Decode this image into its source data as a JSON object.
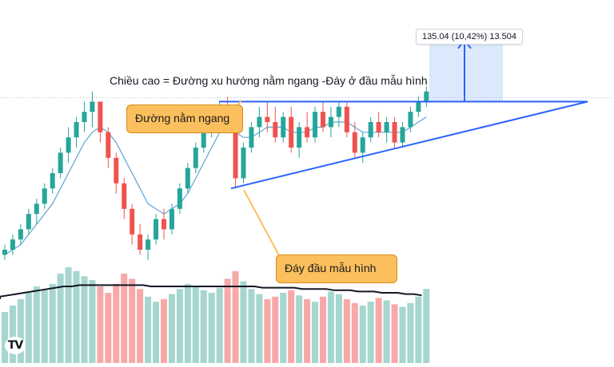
{
  "tooltip": {
    "text": "135.04 (10,42%) 13.504"
  },
  "annotation": {
    "text": "Chiều cao = Đường xu hướng nằm ngang -Đáy ở đầu mẫu hình"
  },
  "callouts": {
    "horizontal_line": "Đường nằm ngang",
    "pattern_bottom": "Đáy đầu mẫu hình"
  },
  "logo": {
    "text": "TV"
  },
  "colors": {
    "up": "#26a69a",
    "down": "#ef5350",
    "volume_up": "#a5d6cf",
    "volume_down": "#f7a9a9",
    "ma_fast": "#5ba5d6",
    "ma_volume": "#131722",
    "trendline": "#2962ff",
    "projection_fill": "#d6e4fa",
    "callout_fill": "#fbbf5d"
  },
  "chart_data": {
    "type": "candlestick",
    "title": "",
    "xlabel": "",
    "ylabel": "",
    "series": [
      {
        "name": "",
        "kind": "ohlc",
        "values": [
          [
            104,
            106,
            103,
            105
          ],
          [
            105,
            108,
            104,
            107
          ],
          [
            107,
            110,
            106,
            109
          ],
          [
            109,
            113,
            108,
            112
          ],
          [
            112,
            115,
            110,
            114
          ],
          [
            114,
            118,
            113,
            117
          ],
          [
            117,
            121,
            116,
            120
          ],
          [
            120,
            125,
            119,
            124
          ],
          [
            124,
            129,
            122,
            127
          ],
          [
            127,
            131,
            125,
            130
          ],
          [
            130,
            134,
            128,
            132
          ],
          [
            132,
            136,
            129,
            134
          ],
          [
            134,
            133,
            126,
            128
          ],
          [
            128,
            129,
            121,
            123
          ],
          [
            123,
            124,
            116,
            118
          ],
          [
            118,
            119,
            111,
            113
          ],
          [
            113,
            114,
            106,
            108
          ],
          [
            108,
            110,
            104,
            105
          ],
          [
            105,
            108,
            103,
            107
          ],
          [
            107,
            112,
            106,
            111
          ],
          [
            111,
            113,
            107,
            109
          ],
          [
            109,
            114,
            108,
            113
          ],
          [
            113,
            118,
            112,
            117
          ],
          [
            117,
            122,
            116,
            121
          ],
          [
            121,
            126,
            120,
            125
          ],
          [
            125,
            130,
            124,
            129
          ],
          [
            129,
            133,
            127,
            131
          ],
          [
            131,
            134,
            129,
            133
          ],
          [
            133,
            135,
            130,
            132
          ],
          [
            132,
            133,
            117,
            119
          ],
          [
            119,
            126,
            118,
            125
          ],
          [
            125,
            130,
            124,
            129
          ],
          [
            129,
            133,
            127,
            131
          ],
          [
            131,
            134,
            128,
            130
          ],
          [
            130,
            133,
            126,
            127
          ],
          [
            127,
            132,
            126,
            131
          ],
          [
            131,
            133,
            124,
            125
          ],
          [
            125,
            130,
            123,
            129
          ],
          [
            129,
            132,
            126,
            127
          ],
          [
            127,
            133,
            126,
            132
          ],
          [
            132,
            134,
            128,
            129
          ],
          [
            129,
            133,
            127,
            131
          ],
          [
            131,
            134,
            129,
            133
          ],
          [
            133,
            134,
            127,
            128
          ],
          [
            128,
            130,
            123,
            124
          ],
          [
            124,
            128,
            122,
            127
          ],
          [
            127,
            131,
            126,
            130
          ],
          [
            130,
            132,
            127,
            128
          ],
          [
            128,
            131,
            126,
            130
          ],
          [
            130,
            131,
            125,
            126
          ],
          [
            126,
            130,
            125,
            129
          ],
          [
            129,
            133,
            128,
            132
          ],
          [
            132,
            135,
            131,
            134
          ],
          [
            134,
            137,
            133,
            136
          ]
        ]
      },
      {
        "name": "",
        "kind": "ma",
        "values": [
          104,
          105,
          106,
          108,
          110,
          112,
          114,
          117,
          120,
          123,
          126,
          128,
          129,
          128,
          126,
          123,
          120,
          117,
          114,
          113,
          112,
          113,
          114,
          116,
          119,
          122,
          125,
          128,
          130,
          128,
          127,
          127,
          128,
          129,
          129,
          129,
          128,
          128,
          128,
          129,
          129,
          130,
          130,
          130,
          129,
          128,
          128,
          128,
          128,
          128,
          128,
          129,
          130,
          131
        ]
      },
      {
        "name": "",
        "kind": "volume",
        "values": [
          40,
          45,
          50,
          55,
          60,
          58,
          62,
          70,
          75,
          72,
          68,
          65,
          60,
          55,
          62,
          70,
          66,
          58,
          52,
          48,
          50,
          54,
          58,
          62,
          60,
          57,
          55,
          59,
          66,
          72,
          64,
          58,
          54,
          50,
          52,
          55,
          57,
          53,
          50,
          48,
          52,
          56,
          54,
          50,
          47,
          45,
          48,
          51,
          49,
          46,
          44,
          47,
          52,
          58
        ]
      },
      {
        "name": "",
        "kind": "volume-ma",
        "values": [
          52,
          53,
          54,
          55,
          56,
          57,
          58,
          59,
          60,
          60,
          61,
          61,
          61,
          61,
          61,
          61,
          61,
          61,
          61,
          60,
          60,
          60,
          60,
          60,
          60,
          60,
          60,
          60,
          60,
          60,
          60,
          60,
          60,
          59,
          59,
          59,
          59,
          59,
          58,
          58,
          58,
          58,
          57,
          57,
          57,
          56,
          56,
          56,
          55,
          55,
          55,
          54,
          54,
          53
        ]
      }
    ],
    "levels": {
      "horizontal_resistance": 134,
      "pattern_bottom": 117,
      "target": 146
    }
  }
}
